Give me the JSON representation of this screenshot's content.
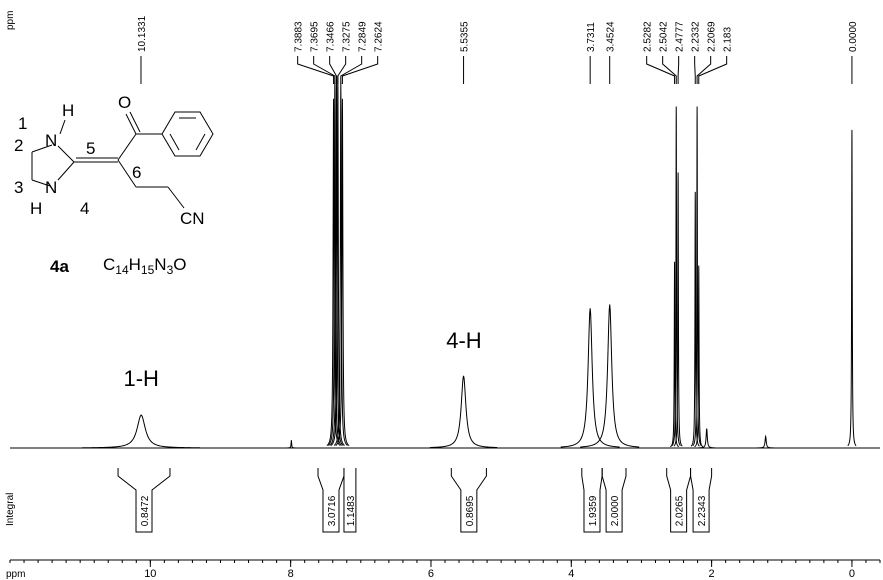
{
  "molecule": {
    "atoms": [
      "N",
      "H",
      "N",
      "H",
      "O",
      "CN"
    ],
    "numbers": [
      "1",
      "2",
      "3",
      "4",
      "5",
      "6"
    ],
    "compound": "4a",
    "formula": [
      "C",
      "14",
      "H",
      "15",
      "N",
      "3",
      "O"
    ]
  },
  "chart_data": {
    "type": "nmr",
    "x_label": "ppm",
    "peak_axis_label": "ppm",
    "integral_label": "Integral",
    "xlim": [
      12,
      -0.4
    ],
    "xticks": [
      10,
      8,
      6,
      4,
      2,
      0
    ],
    "ylim": [
      0,
      100
    ],
    "peak_labels": [
      10.1331,
      7.3883,
      7.3695,
      7.3466,
      7.3275,
      7.2849,
      7.2624,
      5.5355,
      3.7311,
      3.4524,
      2.5282,
      2.5042,
      2.4777,
      2.2332,
      2.2069,
      2.183,
      {
        "value": 0,
        "label": "0.0000"
      }
    ],
    "peaks": [
      {
        "ppm": 10.13,
        "height": 8.5,
        "width": 0.07
      },
      {
        "ppm": 7.99,
        "height": 2,
        "width": 0.005
      },
      {
        "ppm": 7.3883,
        "height": 90,
        "width": 0.008
      },
      {
        "ppm": 7.3695,
        "height": 96,
        "width": 0.008
      },
      {
        "ppm": 7.3466,
        "height": 95,
        "width": 0.008
      },
      {
        "ppm": 7.3275,
        "height": 96,
        "width": 0.008
      },
      {
        "ppm": 7.2849,
        "height": 94,
        "width": 0.008
      },
      {
        "ppm": 7.2624,
        "height": 90,
        "width": 0.008
      },
      {
        "ppm": 5.5355,
        "height": 18.6,
        "width": 0.04
      },
      {
        "ppm": 3.7311,
        "height": 36,
        "width": 0.035
      },
      {
        "ppm": 3.4524,
        "height": 37,
        "width": 0.035
      },
      {
        "ppm": 2.5282,
        "height": 48,
        "width": 0.005
      },
      {
        "ppm": 2.5042,
        "height": 88,
        "width": 0.005
      },
      {
        "ppm": 2.4777,
        "height": 71,
        "width": 0.005
      },
      {
        "ppm": 2.2332,
        "height": 66,
        "width": 0.005
      },
      {
        "ppm": 2.2069,
        "height": 88,
        "width": 0.005
      },
      {
        "ppm": 2.183,
        "height": 47,
        "width": 0.005
      },
      {
        "ppm": 2.07,
        "height": 5,
        "width": 0.01
      },
      {
        "ppm": 1.23,
        "height": 3,
        "width": 0.01
      },
      {
        "ppm": 0,
        "height": 82,
        "width": 0.005
      }
    ],
    "integrals": [
      {
        "from": 10.46,
        "to": 9.72,
        "value": 0.8472
      },
      {
        "from": 7.61,
        "to": 7.24,
        "value": 3.0716
      },
      {
        "from": 7.24,
        "to": 7.07,
        "value": 1.1483
      },
      {
        "from": 5.71,
        "to": 5.21,
        "value": 0.8695
      },
      {
        "from": 3.85,
        "to": 3.56,
        "value": 1.9359
      },
      {
        "from": 3.56,
        "to": 3.22,
        "value": {
          "value": 2,
          "label": "2.0000"
        }
      },
      {
        "from": 2.64,
        "to": 2.3,
        "value": 2.0265
      },
      {
        "from": 2.3,
        "to": 2.0,
        "value": 2.2343
      }
    ],
    "annotations": [
      {
        "text": "1-H",
        "x": 10.13,
        "color": "#ff0000"
      },
      {
        "text": "4-H",
        "x": 5.53,
        "color": "#ff0000"
      }
    ]
  }
}
